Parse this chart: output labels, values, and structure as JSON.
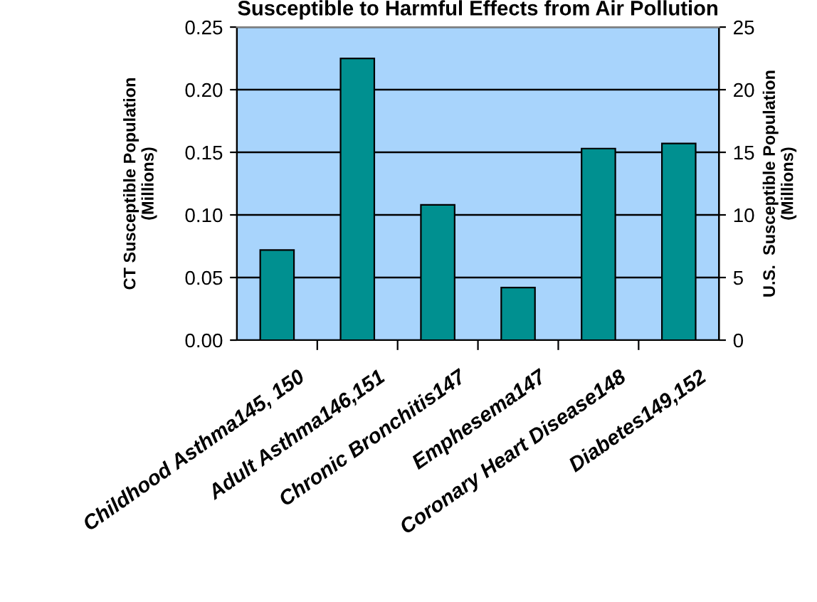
{
  "chart_data": {
    "type": "bar",
    "title": "Susceptible to Harmful Effects from Air Pollution",
    "ylabel": "CT Susceptible Population\n(Millions)",
    "y2label": "U.S.  Susceptible Population\n(Millions)",
    "categories": [
      "Childhood Asthma145, 150",
      "Adult Asthma146,151",
      "Chronic Bronchitis147",
      "Emphesema147",
      "Coronary Heart Disease148",
      "Diabetes149,152"
    ],
    "series": [
      {
        "color": "#009090",
        "values": [
          0.072,
          0.225,
          0.108,
          0.042,
          0.153,
          0.157
        ]
      }
    ],
    "ylim": [
      0,
      0.25
    ],
    "yticks": [
      {
        "value": 0,
        "label": "0.00"
      },
      {
        "value": 0.05,
        "label": "0.05"
      },
      {
        "value": 0.1,
        "label": "0.10"
      },
      {
        "value": 0.15,
        "label": "0.15"
      },
      {
        "value": 0.2,
        "label": "0.20"
      },
      {
        "value": 0.25,
        "label": "0.25"
      }
    ],
    "y2lim": [
      0,
      25
    ],
    "y2ticks": [
      0,
      5,
      10,
      15,
      20,
      25
    ],
    "grid": "y"
  }
}
